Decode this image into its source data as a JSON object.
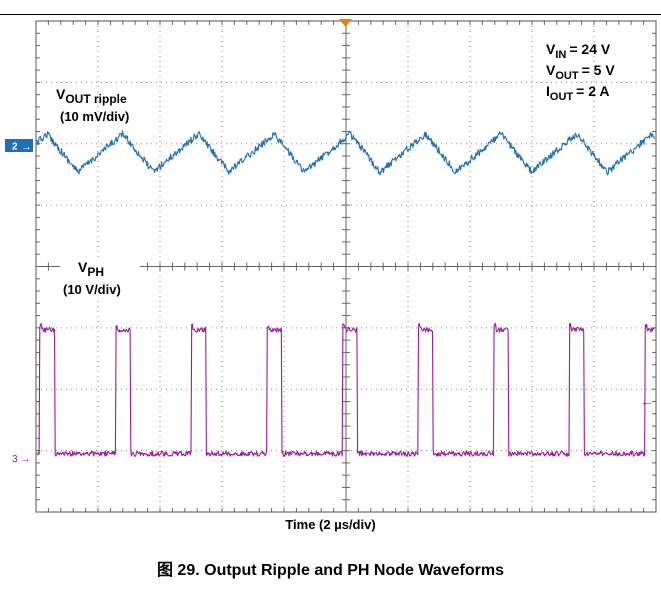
{
  "chart_data": {
    "type": "line",
    "xlabel": "Time (2 µs/div)",
    "grid": true,
    "divisions": {
      "x": 10,
      "y": 8
    },
    "x_units": "µs",
    "x_per_div": 2,
    "x_range": [
      0,
      20
    ],
    "conditions": {
      "vin": {
        "sym": "V",
        "sub": "IN",
        "value": "= 24 V"
      },
      "vout": {
        "sym": "V",
        "sub": "OUT",
        "value": "= 5 V"
      },
      "iout": {
        "sym": "I",
        "sub": "OUT",
        "value": "= 2 A"
      }
    },
    "series": [
      {
        "name_sym": "V",
        "name_sub": "OUT ripple",
        "scale": "(10 mV/div)",
        "channel_marker": "2",
        "color": "#1f6fb3",
        "waveform": "triangle",
        "peak_to_peak_div": 0.62,
        "period_us": 2.44,
        "level_div": 5.85
      },
      {
        "name_sym": "V",
        "name_sub": "PH",
        "scale": "(10 V/div)",
        "channel_marker": "3",
        "color": "#9b1b9b",
        "waveform": "square",
        "period_us": 2.44,
        "duty": 0.2,
        "high_div": 2.02,
        "low_div": 0.0,
        "level_div": -0.08
      }
    ]
  },
  "caption": "图 29. Output Ripple and PH Node Waveforms"
}
